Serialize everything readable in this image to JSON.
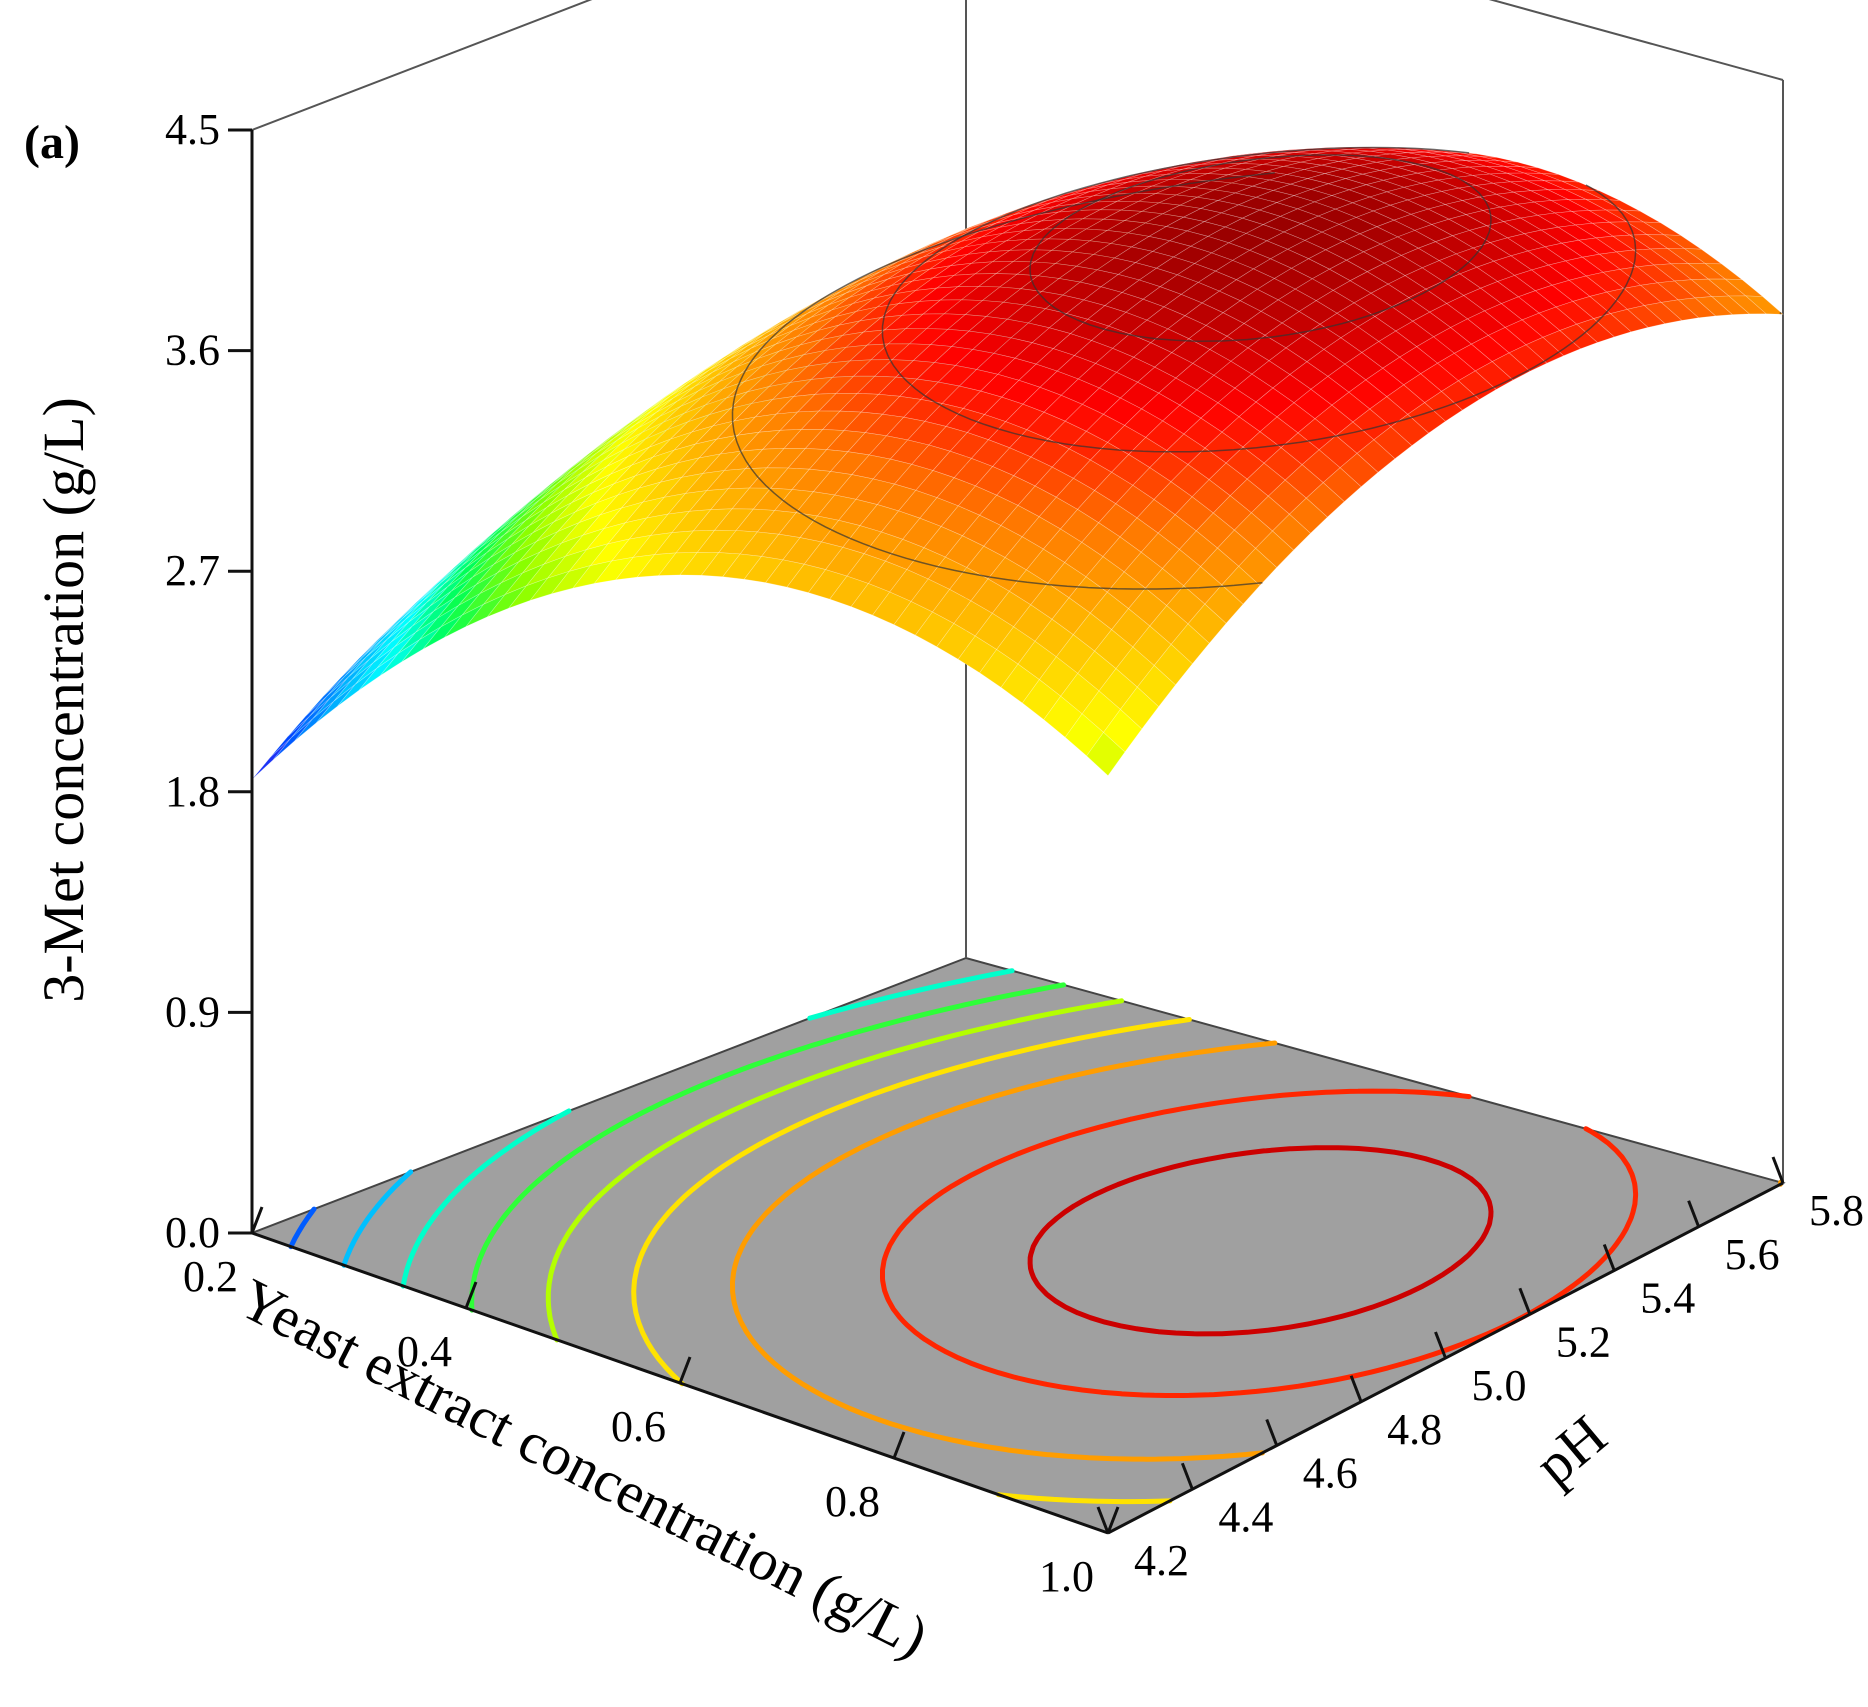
{
  "panel_label": "(a)",
  "chart_data": {
    "type": "surface3d",
    "zlabel": "3-Met concentration (g/L)",
    "xlabel": "Yeast extract concentration (g/L)",
    "ylabel": "pH",
    "x_ticks": [
      "0.2",
      "0.4",
      "0.6",
      "0.8",
      "1.0"
    ],
    "y_ticks": [
      "4.2",
      "4.4",
      "4.6",
      "4.8",
      "5.0",
      "5.2",
      "5.4",
      "5.6",
      "5.8"
    ],
    "z_ticks": [
      "0.0",
      "0.9",
      "1.8",
      "2.7",
      "3.6",
      "4.5"
    ],
    "xlim": [
      0.2,
      1.0
    ],
    "ylim": [
      4.2,
      5.8
    ],
    "zlim": [
      0.0,
      4.5
    ],
    "floor_color": "#a0a0a0",
    "colormap": [
      "#7a00d6",
      "#0044ff",
      "#00a8ff",
      "#00ffff",
      "#00ff55",
      "#88ff00",
      "#ffff00",
      "#ffbb00",
      "#ff7700",
      "#ff0000",
      "#990000"
    ],
    "surface_corners": [
      {
        "x": 0.2,
        "y": 4.2,
        "z": 1.75
      },
      {
        "x": 0.2,
        "y": 5.8,
        "z": 2.35
      },
      {
        "x": 1.0,
        "y": 4.2,
        "z": 3.05
      },
      {
        "x": 1.0,
        "y": 5.8,
        "z": 3.85
      }
    ],
    "surface_max": {
      "x": 0.75,
      "y": 5.18,
      "z": 4.17
    },
    "contour_levels": [
      2.05,
      2.3,
      2.55,
      2.8,
      3.05,
      3.3,
      3.55,
      3.85,
      4.05
    ]
  }
}
